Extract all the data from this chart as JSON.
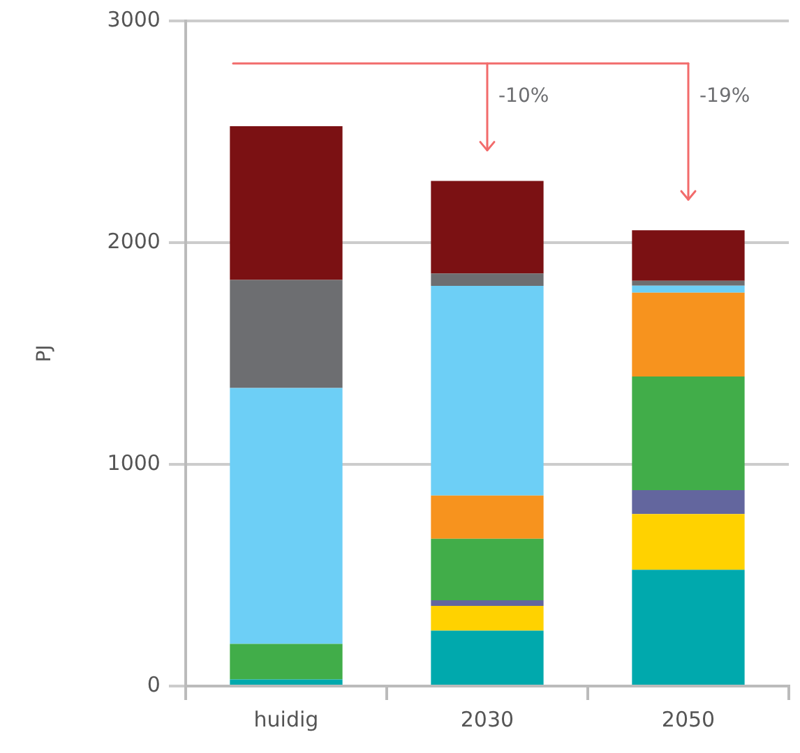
{
  "chart_data": {
    "type": "bar",
    "stacked": true,
    "ylabel": "PJ",
    "categories": [
      "huidig",
      "2030",
      "2050"
    ],
    "series": [
      {
        "color": "#00a9ad",
        "values": [
          30,
          250,
          524
        ]
      },
      {
        "color": "#ffd200",
        "values": [
          0,
          112,
          252
        ]
      },
      {
        "color": "#63669e",
        "values": [
          0,
          25,
          108
        ]
      },
      {
        "color": "#41ad49",
        "values": [
          160,
          277,
          512
        ]
      },
      {
        "color": "#f7931e",
        "values": [
          0,
          195,
          378
        ]
      },
      {
        "color": "#6dcff6",
        "values": [
          1154,
          946,
          32
        ]
      },
      {
        "color": "#6d6e71",
        "values": [
          488,
          56,
          22
        ]
      },
      {
        "color": "#7b1113",
        "values": [
          693,
          417,
          228
        ]
      }
    ],
    "ylim": [
      0,
      3000
    ],
    "yticks": [
      0,
      1000,
      2000,
      3000
    ],
    "grid": "y",
    "legend": false,
    "annotations": [
      "-10%",
      "-19%"
    ]
  }
}
